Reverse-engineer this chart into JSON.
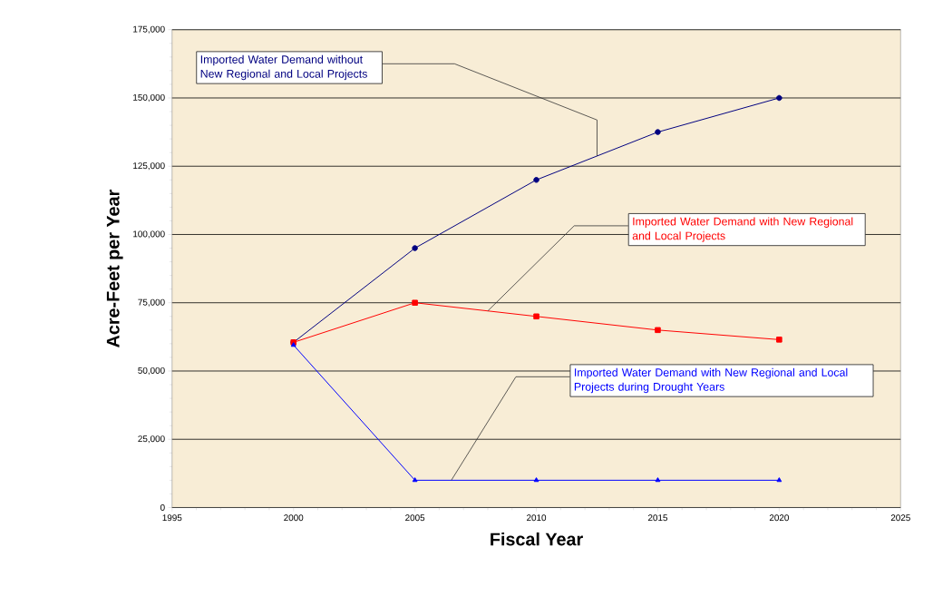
{
  "chart_data": {
    "type": "line",
    "xlabel": "Fiscal Year",
    "ylabel": "Acre-Feet per Year",
    "x": [
      2000,
      2005,
      2010,
      2015,
      2020
    ],
    "series": [
      {
        "name": "Imported Water Demand without New Regional and Local Projects",
        "color": "#000080",
        "marker": "circle",
        "values": [
          60500,
          95000,
          120000,
          137500,
          150000
        ]
      },
      {
        "name": "Imported Water Demand with New Regional and Local Projects",
        "color": "#ff0000",
        "marker": "square",
        "values": [
          60500,
          75000,
          70000,
          65000,
          61500
        ]
      },
      {
        "name": "Imported Water Demand with New Regional and Local Projects during Drought Years",
        "color": "#0000ff",
        "marker": "triangle",
        "values": [
          59500,
          10000,
          10000,
          10000,
          10000
        ]
      }
    ],
    "xlim": [
      1995,
      2025
    ],
    "xticks": [
      1995,
      2000,
      2005,
      2010,
      2015,
      2020,
      2025
    ],
    "ylim": [
      0,
      175000
    ],
    "yticks": [
      0,
      {
        "value": 25000,
        "label": "25,000"
      },
      {
        "value": 50000,
        "label": "50,000"
      },
      {
        "value": 75000,
        "label": "75,000"
      },
      {
        "value": 100000,
        "label": "100,000"
      },
      {
        "value": 125000,
        "label": "125,000"
      },
      {
        "value": 150000,
        "label": "150,000"
      },
      {
        "value": 175000,
        "label": "175,000"
      }
    ],
    "grid": "y",
    "legend": false,
    "line_style": "solid"
  }
}
